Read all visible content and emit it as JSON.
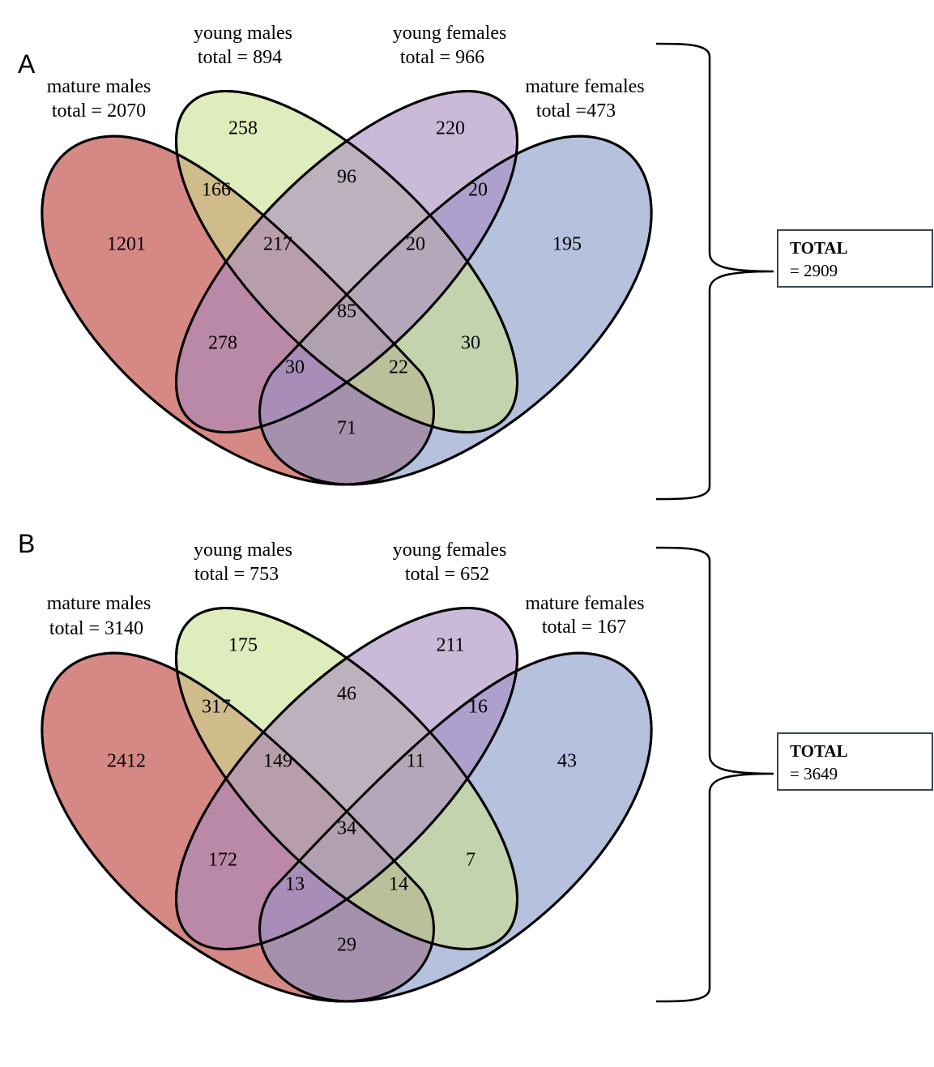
{
  "panels": [
    {
      "id": "A",
      "sets": {
        "mature_males": {
          "name": "mature males",
          "total_text": "total =  2070"
        },
        "young_males": {
          "name": "young males",
          "total_text": "total =  894"
        },
        "young_females": {
          "name": "young females",
          "total_text": "total =  966"
        },
        "mature_females": {
          "name": "mature females",
          "total_text": "total =473"
        }
      },
      "regions": {
        "mm": "1201",
        "ym": "258",
        "yf": "220",
        "mf": "195",
        "mm_ym": "166",
        "ym_yf": "96",
        "yf_mf": "20",
        "mm_ym_yf": "217",
        "ym_yf_mf": "20",
        "all": "85",
        "mm_yf": "278",
        "ym_mf": "30",
        "mm_yf_mf": "30",
        "mm_ym_mf": "22",
        "mm_mf": "71"
      },
      "total": {
        "label": "TOTAL",
        "value": "= 2909"
      }
    },
    {
      "id": "B",
      "sets": {
        "mature_males": {
          "name": "mature males",
          "total_text": "total =  3140"
        },
        "young_males": {
          "name": "young males",
          "total_text": "total =  753"
        },
        "young_females": {
          "name": "young females",
          "total_text": "total =  652"
        },
        "mature_females": {
          "name": "mature females",
          "total_text": "total =  167"
        }
      },
      "regions": {
        "mm": "2412",
        "ym": "175",
        "yf": "211",
        "mf": "43",
        "mm_ym": "317",
        "ym_yf": "46",
        "yf_mf": "16",
        "mm_ym_yf": "149",
        "ym_yf_mf": "11",
        "all": "34",
        "mm_yf": "172",
        "ym_mf": "7",
        "mm_yf_mf": "13",
        "mm_ym_mf": "14",
        "mm_mf": "29"
      },
      "total": {
        "label": "TOTAL",
        "value": "= 3649"
      }
    }
  ],
  "colors": {
    "mature_males": "#d4827e",
    "young_males": "#c9df8e",
    "young_females": "#a98bc0",
    "mature_females": "#8698c8"
  }
}
